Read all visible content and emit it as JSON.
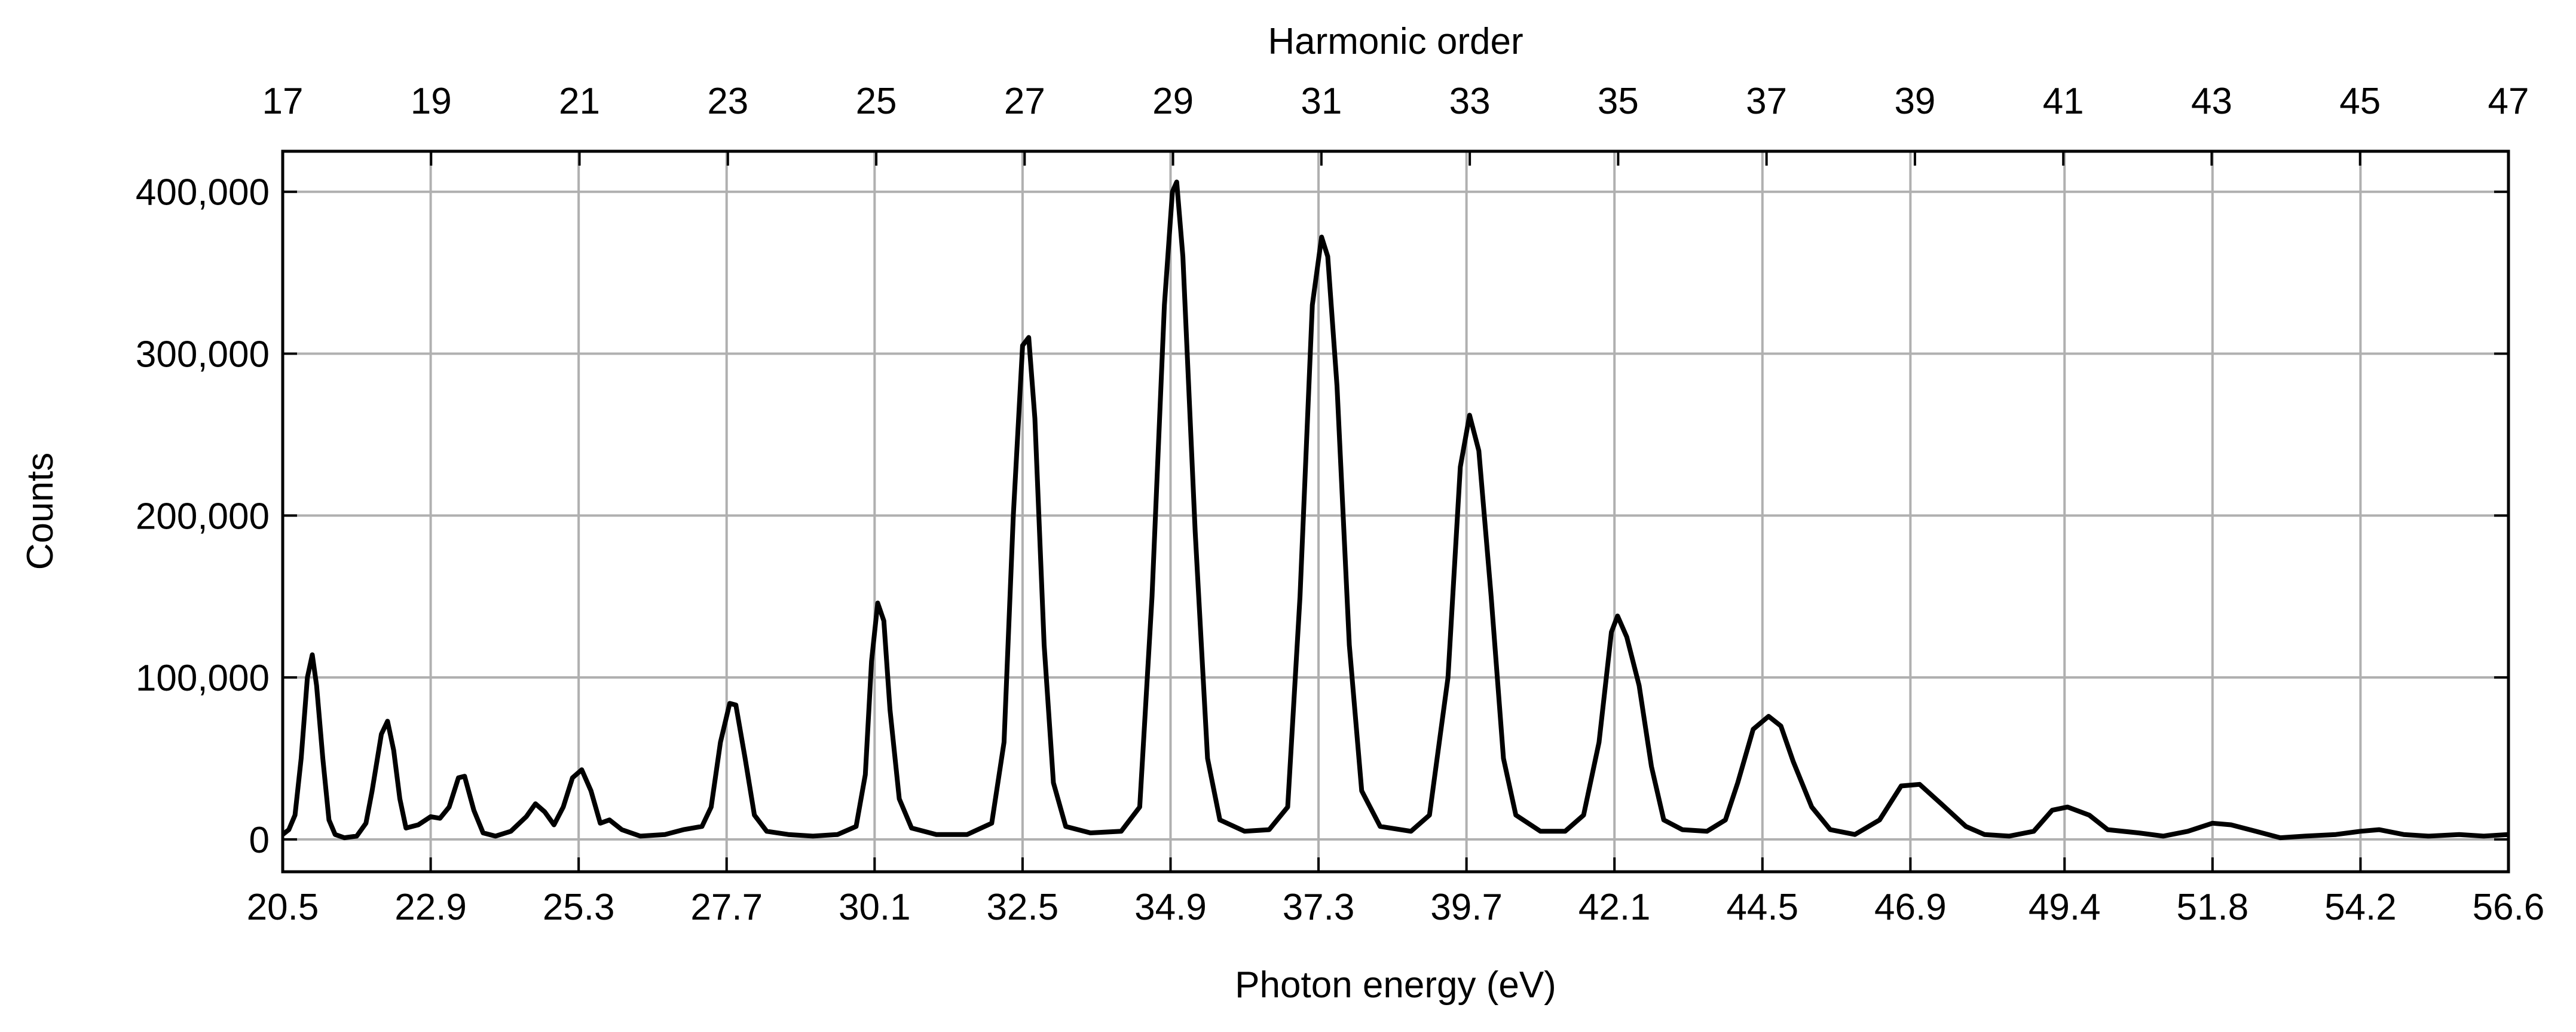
{
  "chart_data": {
    "type": "line",
    "xlabel": "Photon energy (eV)",
    "ylabel": "Counts",
    "x2label": "Harmonic order",
    "color": "#000000",
    "grid": true,
    "xlim": [
      20.5,
      56.6
    ],
    "xticks": [
      20.5,
      22.9,
      25.3,
      27.7,
      30.1,
      32.5,
      34.9,
      37.3,
      39.7,
      42.1,
      44.5,
      46.9,
      49.4,
      51.8,
      54.2,
      56.6
    ],
    "x2lim": [
      17,
      47
    ],
    "x2ticks": [
      17,
      19,
      21,
      23,
      25,
      27,
      29,
      31,
      33,
      35,
      37,
      39,
      41,
      43,
      45,
      47
    ],
    "ylim": [
      -20000,
      425000
    ],
    "yticks": [
      {
        "value": 0,
        "label": "0"
      },
      {
        "value": 100000,
        "label": "100,000"
      },
      {
        "value": 200000,
        "label": "200,000"
      },
      {
        "value": 300000,
        "label": "300,000"
      },
      {
        "value": 400000,
        "label": "400,000"
      }
    ],
    "x": [
      20.5,
      20.6,
      20.7,
      20.8,
      20.9,
      20.98,
      21.05,
      21.15,
      21.25,
      21.35,
      21.5,
      21.7,
      21.85,
      21.95,
      22.1,
      22.2,
      22.3,
      22.4,
      22.5,
      22.7,
      22.9,
      23.05,
      23.2,
      23.35,
      23.45,
      23.6,
      23.75,
      23.95,
      24.2,
      24.45,
      24.6,
      24.75,
      24.9,
      25.05,
      25.2,
      25.35,
      25.5,
      25.65,
      25.8,
      26.0,
      26.3,
      26.7,
      27.0,
      27.3,
      27.45,
      27.6,
      27.75,
      27.85,
      28.0,
      28.15,
      28.35,
      28.7,
      29.1,
      29.5,
      29.8,
      29.95,
      30.05,
      30.15,
      30.25,
      30.35,
      30.5,
      30.7,
      31.1,
      31.6,
      32.0,
      32.2,
      32.35,
      32.5,
      32.6,
      32.7,
      32.85,
      33.0,
      33.2,
      33.6,
      34.1,
      34.4,
      34.6,
      34.8,
      34.93,
      35.0,
      35.1,
      35.3,
      35.5,
      35.7,
      36.1,
      36.5,
      36.8,
      37.0,
      37.2,
      37.35,
      37.45,
      37.6,
      37.8,
      38.0,
      38.3,
      38.8,
      39.1,
      39.4,
      39.6,
      39.75,
      39.9,
      40.1,
      40.3,
      40.5,
      40.9,
      41.3,
      41.6,
      41.85,
      42.05,
      42.15,
      42.3,
      42.5,
      42.7,
      42.9,
      43.2,
      43.6,
      43.9,
      44.1,
      44.35,
      44.6,
      44.8,
      45.0,
      45.3,
      45.6,
      46.0,
      46.4,
      46.75,
      47.05,
      47.4,
      47.8,
      48.1,
      48.5,
      48.9,
      49.2,
      49.45,
      49.8,
      50.1,
      50.6,
      51.0,
      51.4,
      51.8,
      52.1,
      52.5,
      52.9,
      53.3,
      53.8,
      54.2,
      54.5,
      54.9,
      55.3,
      55.8,
      56.2,
      56.6
    ],
    "values": [
      3000,
      6000,
      15000,
      50000,
      100000,
      114000,
      95000,
      50000,
      12000,
      3000,
      1000,
      2000,
      10000,
      30000,
      65000,
      73000,
      55000,
      25000,
      7000,
      9000,
      14000,
      13000,
      20000,
      38000,
      39000,
      18000,
      4000,
      2000,
      5000,
      14000,
      22000,
      17000,
      9000,
      20000,
      38000,
      43000,
      30000,
      10000,
      12000,
      6000,
      2000,
      3000,
      6000,
      8000,
      20000,
      60000,
      84000,
      83000,
      50000,
      15000,
      5000,
      3000,
      2000,
      3000,
      8000,
      40000,
      110000,
      146000,
      135000,
      80000,
      25000,
      7000,
      3000,
      3000,
      10000,
      60000,
      200000,
      305000,
      310000,
      260000,
      120000,
      35000,
      8000,
      4000,
      5000,
      20000,
      150000,
      330000,
      400000,
      406000,
      360000,
      190000,
      50000,
      12000,
      5000,
      6000,
      20000,
      150000,
      330000,
      372000,
      360000,
      280000,
      120000,
      30000,
      8000,
      5000,
      15000,
      100000,
      230000,
      262000,
      240000,
      150000,
      50000,
      15000,
      5000,
      5000,
      15000,
      60000,
      128000,
      138000,
      125000,
      95000,
      45000,
      12000,
      6000,
      5000,
      12000,
      35000,
      68000,
      76000,
      70000,
      48000,
      20000,
      6000,
      3000,
      12000,
      33000,
      34000,
      22000,
      8000,
      3000,
      2000,
      5000,
      18000,
      20000,
      15000,
      6000,
      4000,
      2000,
      5000,
      10000,
      9000,
      5000,
      1000,
      2000,
      3000,
      5000,
      6000,
      3000,
      2000,
      3000,
      2000,
      3000
    ]
  }
}
